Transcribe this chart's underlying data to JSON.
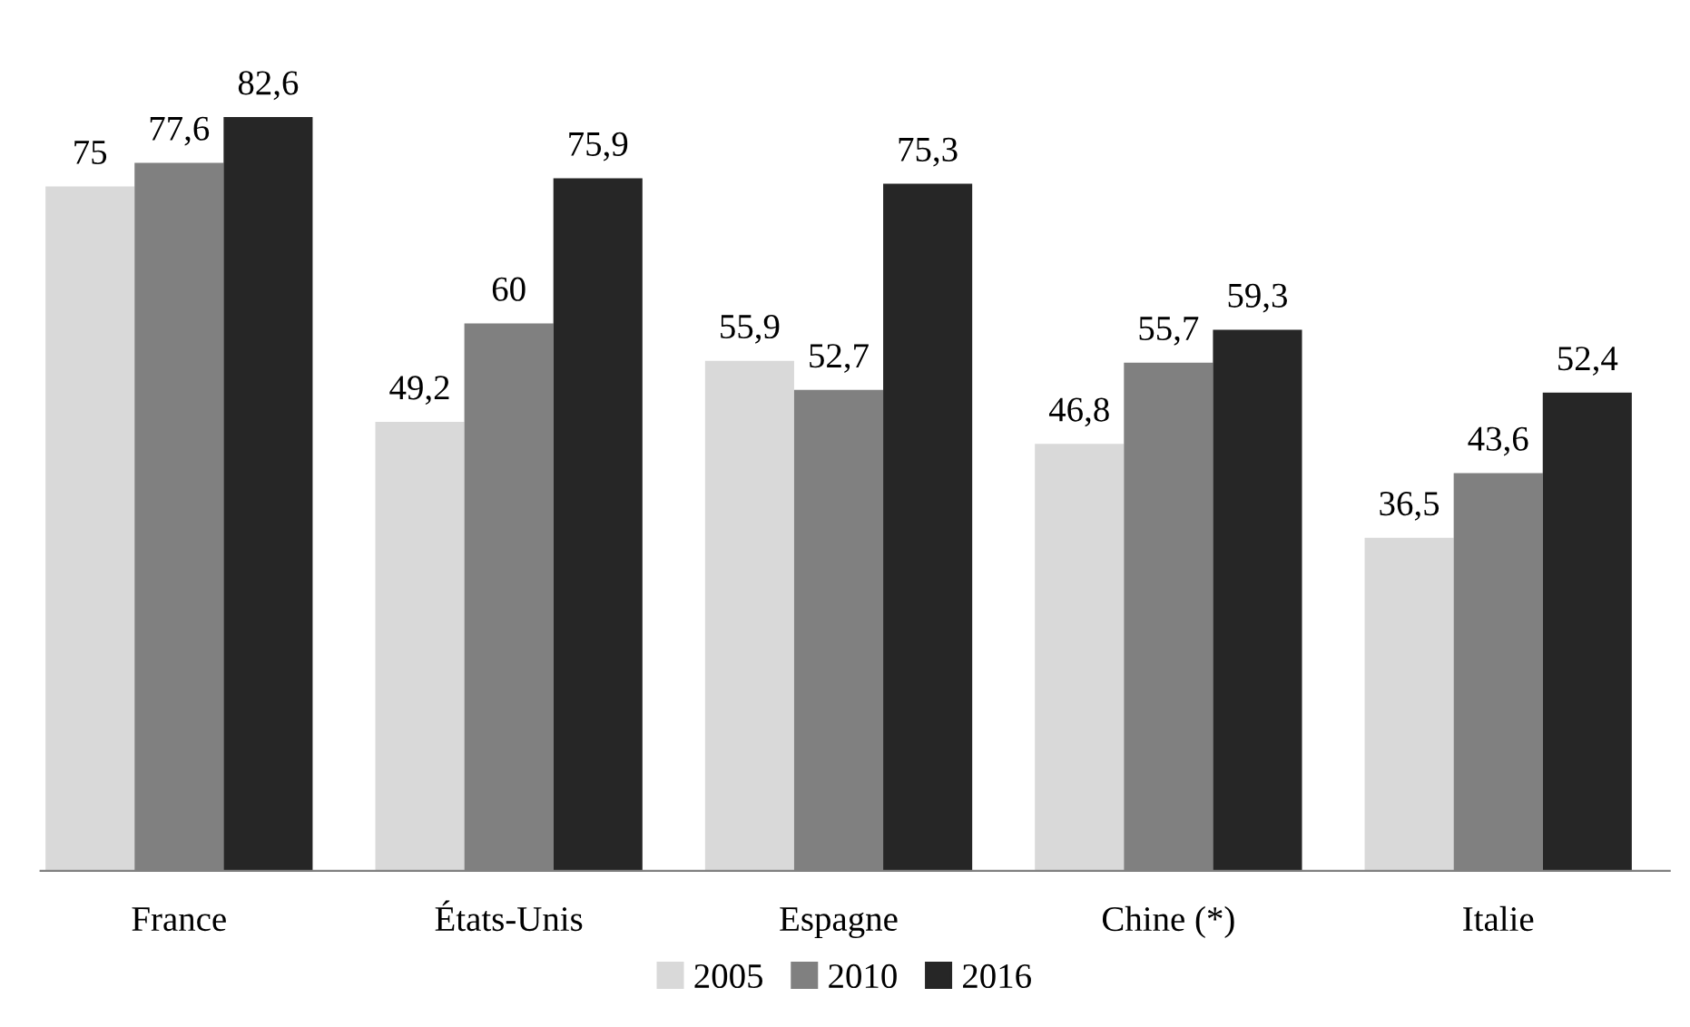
{
  "chart_data": {
    "type": "bar",
    "categories": [
      "France",
      "États-Unis",
      "Espagne",
      "Chine (*)",
      "Italie"
    ],
    "series": [
      {
        "name": "2005",
        "color": "#d9d9d9",
        "values": [
          75,
          49.2,
          55.9,
          46.8,
          36.5
        ],
        "value_labels": [
          "75",
          "49,2",
          "55,9",
          "46,8",
          "36,5"
        ]
      },
      {
        "name": "2010",
        "color": "#808080",
        "values": [
          77.6,
          60,
          52.7,
          55.7,
          43.6
        ],
        "value_labels": [
          "77,6",
          "60",
          "52,7",
          "55,7",
          "43,6"
        ]
      },
      {
        "name": "2016",
        "color": "#262626",
        "values": [
          82.6,
          75.9,
          75.3,
          59.3,
          52.4
        ],
        "value_labels": [
          "82,6",
          "75,9",
          "75,3",
          "59,3",
          "52,4"
        ]
      }
    ],
    "legend": "bottom"
  }
}
